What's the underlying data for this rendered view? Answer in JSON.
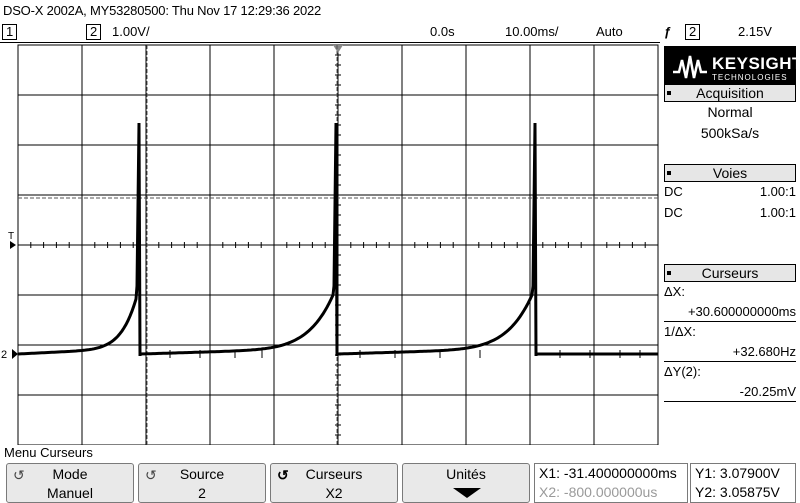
{
  "title": "DSO-X 2002A, MY53280500: Thu Nov 17 12:29:36 2022",
  "status": {
    "ch1_label": "1",
    "ch2_label": "2",
    "ch2_scale": "1.00V/",
    "delay": "0.0s",
    "timebase": "10.00%/",
    "timebase_text": "10.00ms/",
    "acq_mode": "Auto",
    "trigger_icon": "f",
    "trigger_source": "2",
    "trigger_level": "2.15V"
  },
  "panel": {
    "logo_brand": "KEYSIGHT",
    "logo_sub": "TECHNOLOGIES",
    "acquisition": {
      "title": "Acquisition",
      "mode": "Normal",
      "rate": "500kSa/s"
    },
    "voies": {
      "title": "Voies",
      "rows": [
        {
          "coupling": "DC",
          "ratio": "1.00:1"
        },
        {
          "coupling": "DC",
          "ratio": "1.00:1"
        }
      ]
    },
    "curseurs": {
      "title": "Curseurs",
      "dx_label": "ΔX:",
      "dx_value": "+30.600000000ms",
      "inv_dx_label": "1/ΔX:",
      "inv_dx_value": "+32.680Hz",
      "dy_label": "ΔY(2):",
      "dy_value": "-20.25mV"
    }
  },
  "screen_markers": {
    "trigger_marker": "T",
    "ch2_marker": "2"
  },
  "menu": {
    "title": "Menu Curseurs",
    "softkeys": [
      {
        "name": "mode",
        "line1": "Mode",
        "line2": "Manuel"
      },
      {
        "name": "source",
        "line1": "Source",
        "line2": "2"
      },
      {
        "name": "cursors",
        "line1": "Curseurs",
        "line2": "X2"
      },
      {
        "name": "units",
        "line1": "Unités",
        "line2": ""
      }
    ],
    "readout_x": {
      "x1": "X1: -31.400000000ms",
      "x2": "X2: -800.000000us"
    },
    "readout_y": {
      "y1": "Y1: 3.07900V",
      "y2": "Y2: 3.05875V"
    }
  },
  "colors": {
    "trace": "#000000",
    "grid": "#000000",
    "cursor_lines": "#555555",
    "panel_head_bg": "#e6e6e6",
    "softkey_bg": "#e9e9e9"
  },
  "icons": {
    "knob": "rotate-knob-icon",
    "units_arrow": "arrow-down-icon",
    "logo_wave": "keysight-wave-icon"
  }
}
